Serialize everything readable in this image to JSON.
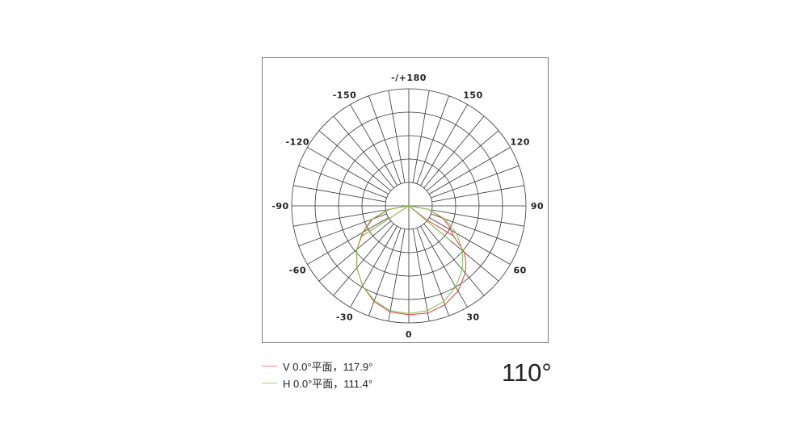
{
  "chart_data": {
    "type": "polar",
    "angle_zero": "bottom",
    "angle_direction": "clockwise-positive-right",
    "radial_range": [
      0,
      1
    ],
    "radial_rings": [
      0.2,
      0.4,
      0.6,
      0.8,
      1.0
    ],
    "spoke_step_deg": 10,
    "tick_labels": [
      {
        "angle": 180,
        "text": "-/+180"
      },
      {
        "angle": 150,
        "text": "150"
      },
      {
        "angle": 120,
        "text": "120"
      },
      {
        "angle": 90,
        "text": "90"
      },
      {
        "angle": 60,
        "text": "60"
      },
      {
        "angle": 30,
        "text": "30"
      },
      {
        "angle": 0,
        "text": "0"
      },
      {
        "angle": -30,
        "text": "-30"
      },
      {
        "angle": -60,
        "text": "-60"
      },
      {
        "angle": -90,
        "text": "-90"
      },
      {
        "angle": -120,
        "text": "-120"
      },
      {
        "angle": -150,
        "text": "-150"
      }
    ],
    "series": [
      {
        "name": "V 0.0°平面，117.9°",
        "color": "#e8393a",
        "legend_color": "#f08a8a",
        "points": [
          [
            -57,
            0.47
          ],
          [
            -90,
            0
          ],
          [
            -80,
            0.17
          ],
          [
            -70,
            0.33
          ],
          [
            -60,
            0.45
          ],
          [
            -50,
            0.58
          ],
          [
            -40,
            0.69
          ],
          [
            -30,
            0.79
          ],
          [
            -20,
            0.87
          ],
          [
            -10,
            0.92
          ],
          [
            0,
            0.93
          ],
          [
            10,
            0.93
          ],
          [
            20,
            0.9
          ],
          [
            30,
            0.84
          ],
          [
            40,
            0.75
          ],
          [
            45,
            0.69
          ],
          [
            50,
            0.62
          ],
          [
            56,
            0.46
          ],
          [
            52,
            0.19
          ],
          [
            90,
            0
          ],
          [
            80,
            0.17
          ],
          [
            70,
            0.31
          ],
          [
            62,
            0.4
          ],
          [
            56,
            0.46
          ]
        ]
      },
      {
        "name": "H 0.0°平面，111.4°",
        "color": "#7cc24a",
        "legend_color": "#9fd27e",
        "points": [
          [
            -57,
            0.47
          ],
          [
            -90,
            0
          ],
          [
            -80,
            0.18
          ],
          [
            -70,
            0.34
          ],
          [
            -60,
            0.46
          ],
          [
            -50,
            0.58
          ],
          [
            -40,
            0.69
          ],
          [
            -30,
            0.79
          ],
          [
            -20,
            0.86
          ],
          [
            -10,
            0.91
          ],
          [
            0,
            0.92
          ],
          [
            10,
            0.91
          ],
          [
            20,
            0.87
          ],
          [
            30,
            0.8
          ],
          [
            40,
            0.71
          ],
          [
            50,
            0.6
          ],
          [
            60,
            0.47
          ],
          [
            70,
            0.33
          ],
          [
            80,
            0.17
          ],
          [
            90,
            0
          ],
          [
            50,
            0.46
          ]
        ]
      }
    ]
  },
  "beam_angle": "110°"
}
